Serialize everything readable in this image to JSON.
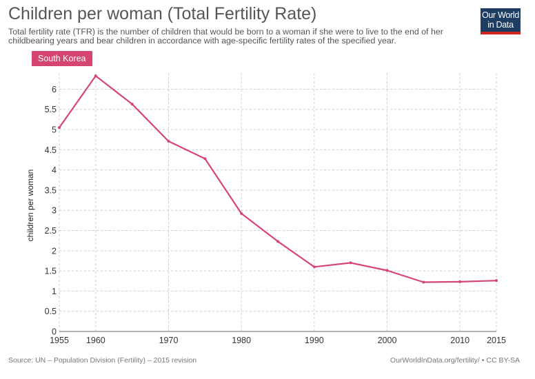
{
  "header": {
    "title": "Children per woman (Total Fertility Rate)",
    "subtitle": "Total fertility rate (TFR) is the number of children that would be born to a woman if she were to live to the end of her childbearing years and bear children in accordance with age-specific fertility rates of the specified year."
  },
  "logo": {
    "line1": "Our World",
    "line2": "in Data"
  },
  "footer": {
    "source": "Source: UN – Population Division (Fertility) – 2015 revision",
    "link": "OurWorldInData.org/fertility/ • CC BY-SA"
  },
  "colors": {
    "series": "#d6456f",
    "grid": "#cccccc",
    "logo_bg": "#1d3d63",
    "logo_accent": "#ce261e"
  },
  "chart_data": {
    "type": "line",
    "title": "Children per woman (Total Fertility Rate)",
    "xlabel": "",
    "ylabel": "children per woman",
    "xlim": [
      1955,
      2015
    ],
    "ylim": [
      0,
      6.4
    ],
    "x_ticks": [
      1955,
      1960,
      1970,
      1980,
      1990,
      2000,
      2010,
      2015
    ],
    "y_ticks": [
      0,
      0.5,
      1,
      1.5,
      2,
      2.5,
      3,
      3.5,
      4,
      4.5,
      5,
      5.5,
      6
    ],
    "grid": true,
    "legend": "top-left",
    "series": [
      {
        "name": "South Korea",
        "x": [
          1955,
          1960,
          1965,
          1970,
          1975,
          1980,
          1985,
          1990,
          1995,
          2000,
          2005,
          2010,
          2015
        ],
        "values": [
          5.05,
          6.33,
          5.63,
          4.71,
          4.28,
          2.92,
          2.23,
          1.6,
          1.7,
          1.51,
          1.22,
          1.23,
          1.26
        ]
      }
    ]
  }
}
